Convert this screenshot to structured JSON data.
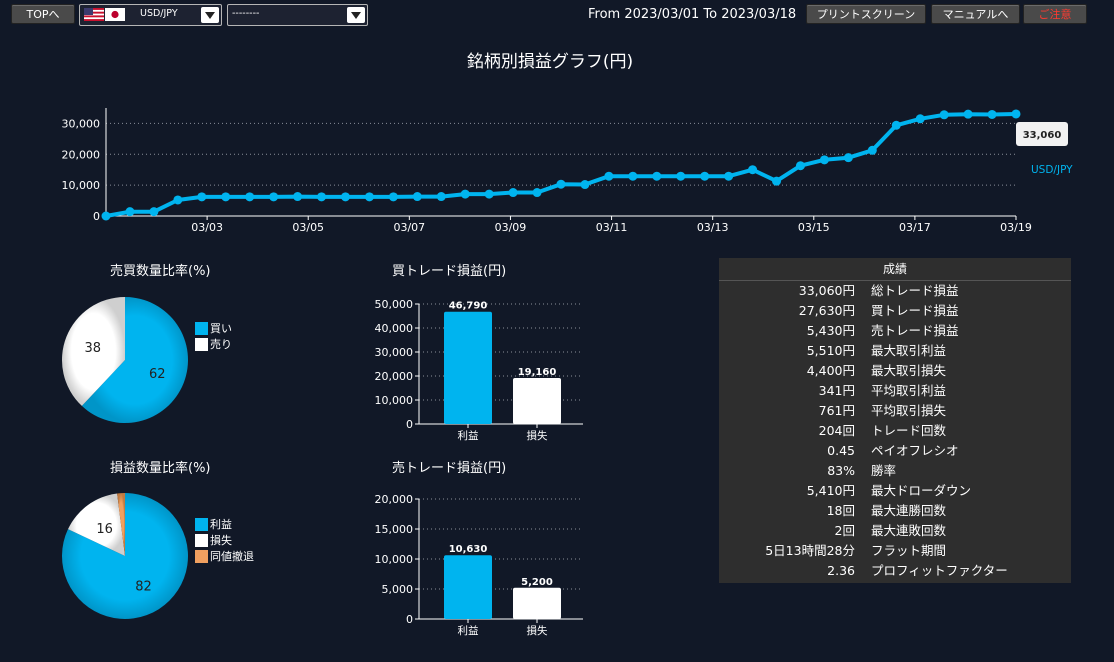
{
  "toolbar": {
    "top_label": "TOPへ",
    "symbol_value": "USD/JPY",
    "second_select_value": "--------",
    "period_text": "From 2023/03/01 To 2023/03/18",
    "print_label": "プリントスクリーン",
    "manual_label": "マニュアルへ",
    "notice_label": "ご注意",
    "notice_color": "#ff3b30"
  },
  "main_chart": {
    "title": "銘柄別損益グラフ(円)",
    "series_name": "USD/JPY",
    "last_value_label": "33,060",
    "color": "#00b4ef",
    "y_ticks": [
      "0",
      "10,000",
      "20,000",
      "30,000"
    ],
    "x_ticks": [
      "03/03",
      "03/05",
      "03/07",
      "03/09",
      "03/11",
      "03/13",
      "03/15",
      "03/17",
      "03/19"
    ]
  },
  "chart_data": [
    {
      "type": "line",
      "title": "銘柄別損益グラフ(円)",
      "series": [
        {
          "name": "USD/JPY",
          "values": [
            0,
            1400,
            1400,
            5200,
            6200,
            6200,
            6200,
            6200,
            6300,
            6200,
            6200,
            6200,
            6200,
            6300,
            6300,
            7100,
            7100,
            7600,
            7600,
            10300,
            10200,
            12900,
            12900,
            12900,
            12900,
            12900,
            12900,
            15000,
            11300,
            16300,
            18200,
            18900,
            21300,
            29400,
            31500,
            32800,
            33000,
            32900,
            33060
          ]
        }
      ],
      "x_range": [
        "03/01",
        "03/19"
      ],
      "ylim": [
        0,
        35000
      ],
      "grid": true,
      "legend": "right"
    },
    {
      "type": "pie",
      "title": "売買数量比率(%)",
      "labels": [
        "買い",
        "売り"
      ],
      "values": [
        62,
        38
      ],
      "colors": [
        "#00b4ef",
        "#ffffff"
      ]
    },
    {
      "type": "pie",
      "title": "損益数量比率(%)",
      "labels": [
        "利益",
        "損失",
        "同値撤退"
      ],
      "values": [
        82,
        16,
        2
      ],
      "colors": [
        "#00b4ef",
        "#ffffff",
        "#f0a060"
      ]
    },
    {
      "type": "bar",
      "title": "買トレード損益(円)",
      "categories": [
        "利益",
        "損失"
      ],
      "values": [
        46790,
        19160
      ],
      "value_labels": [
        "46,790",
        "19,160"
      ],
      "y_ticks": [
        "0",
        "10,000",
        "20,000",
        "30,000",
        "40,000",
        "50,000"
      ],
      "ylim": [
        0,
        50000
      ],
      "colors": [
        "#00b4ef",
        "#ffffff"
      ]
    },
    {
      "type": "bar",
      "title": "売トレード損益(円)",
      "categories": [
        "利益",
        "損失"
      ],
      "values": [
        10630,
        5200
      ],
      "value_labels": [
        "10,630",
        "5,200"
      ],
      "y_ticks": [
        "0",
        "5,000",
        "10,000",
        "15,000",
        "20,000"
      ],
      "ylim": [
        0,
        20000
      ],
      "colors": [
        "#00b4ef",
        "#ffffff"
      ]
    }
  ],
  "stats": {
    "header": "成績",
    "rows": [
      {
        "value": "33,060円",
        "label": "総トレード損益"
      },
      {
        "value": "27,630円",
        "label": "買トレード損益"
      },
      {
        "value": "5,430円",
        "label": "売トレード損益"
      },
      {
        "value": "5,510円",
        "label": "最大取引利益"
      },
      {
        "value": "4,400円",
        "label": "最大取引損失"
      },
      {
        "value": "341円",
        "label": "平均取引利益"
      },
      {
        "value": "761円",
        "label": "平均取引損失"
      },
      {
        "value": "204回",
        "label": "トレード回数"
      },
      {
        "value": "0.45",
        "label": "ペイオフレシオ"
      },
      {
        "value": "83%",
        "label": "勝率"
      },
      {
        "value": "5,410円",
        "label": "最大ドローダウン"
      },
      {
        "value": "18回",
        "label": "最大連勝回数"
      },
      {
        "value": "2回",
        "label": "最大連敗回数"
      },
      {
        "value": "5日13時間28分",
        "label": "フラット期間"
      },
      {
        "value": "2.36",
        "label": "プロフィットファクター"
      }
    ]
  }
}
